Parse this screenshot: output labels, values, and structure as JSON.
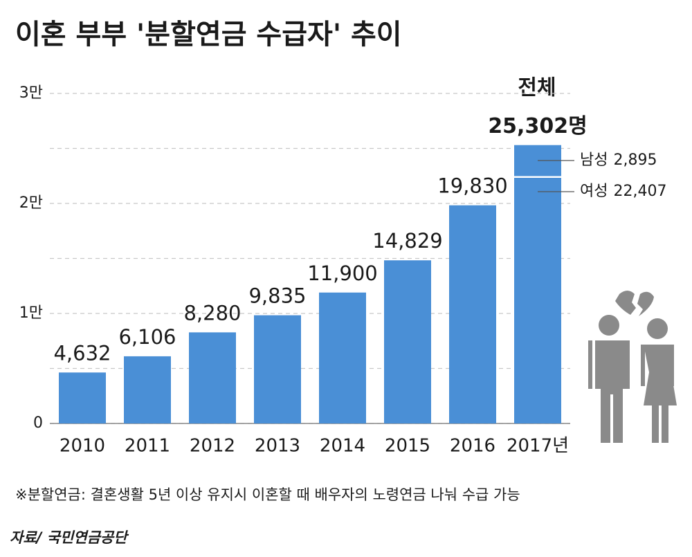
{
  "chart_data": {
    "type": "bar",
    "title": "이혼 부부 '분할연금 수급자' 추이",
    "categories": [
      "2010",
      "2011",
      "2012",
      "2013",
      "2014",
      "2015",
      "2016",
      "2017년"
    ],
    "values": [
      4632,
      6106,
      8280,
      9835,
      11900,
      14829,
      19830,
      25302
    ],
    "value_labels": [
      "4,632",
      "6,106",
      "8,280",
      "9,835",
      "11,900",
      "14,829",
      "19,830",
      "25,302명"
    ],
    "total_label": "전체",
    "segments": [
      {
        "name": "여성",
        "value": 22407,
        "value_label": "22,407"
      },
      {
        "name": "남성",
        "value": 2895,
        "value_label": "2,895"
      }
    ],
    "color": "#4a8fd6",
    "ylim": [
      0,
      30000
    ],
    "yticks": [
      0,
      {
        "value": 10000,
        "label": "1만"
      },
      {
        "value": 20000,
        "label": "2만"
      },
      {
        "value": 30000,
        "label": "3만"
      }
    ],
    "minor_yticks": [
      5000,
      15000,
      25000
    ],
    "grid": true,
    "footnote": "※분할연금: 결혼생활 5년 이상 유지시 이혼할 때 배우자의 노령연금 나눠 수급 가능",
    "source": "자료/ 국민연금공단"
  }
}
